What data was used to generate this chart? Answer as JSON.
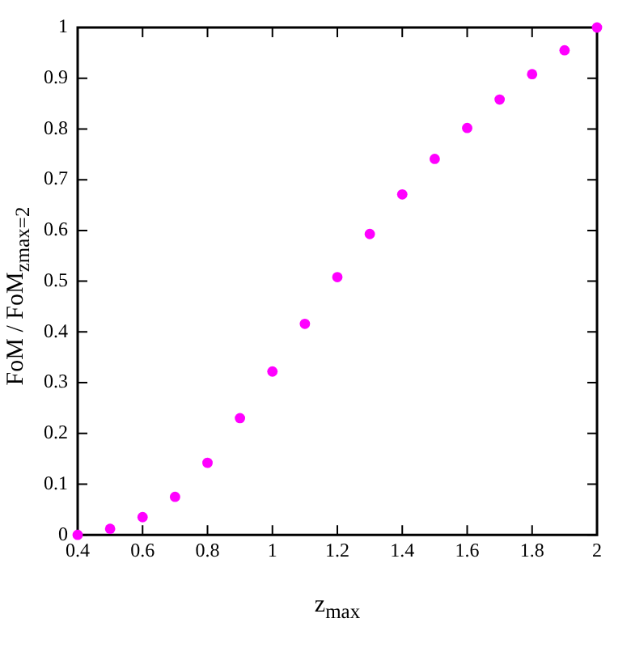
{
  "chart_data": {
    "type": "scatter",
    "xlabel": "z$_{max}$",
    "ylabel": "FoM / FoM$_{zmax=2}$",
    "x": [
      0.4,
      0.5,
      0.6,
      0.7,
      0.8,
      0.9,
      1.0,
      1.1,
      1.2,
      1.3,
      1.4,
      1.5,
      1.6,
      1.7,
      1.8,
      1.9,
      2.0
    ],
    "series": [
      {
        "color": "#ff00ff",
        "values": [
          0,
          0.012,
          0.035,
          0.075,
          0.142,
          0.23,
          0.322,
          0.416,
          0.508,
          0.593,
          0.671,
          0.741,
          0.802,
          0.858,
          0.908,
          0.955,
          1
        ]
      }
    ],
    "xlim": [
      0.4,
      2
    ],
    "ylim": [
      0,
      1
    ],
    "xticks": [
      0.4,
      0.6,
      0.8,
      1,
      1.2,
      1.4,
      1.6,
      1.8,
      2
    ],
    "yticks": [
      0,
      0.1,
      0.2,
      0.3,
      0.4,
      0.5,
      0.6,
      0.7,
      0.8,
      0.9,
      1
    ],
    "marker": "circle",
    "legend": false,
    "grid": false
  }
}
